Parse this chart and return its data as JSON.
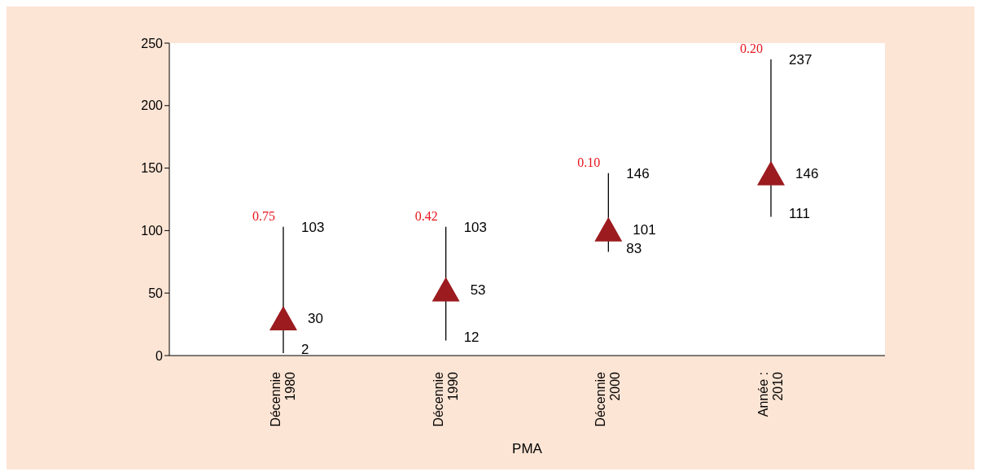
{
  "chart_data": {
    "type": "scatter",
    "xlabel": "PMA",
    "categories": [
      "Décennie 1980",
      "Décennie 1990",
      "Décennie 2000",
      "Année : 2010"
    ],
    "series": [
      {
        "color": "#9b1b1f",
        "values": [
          30,
          53,
          101,
          146
        ],
        "errors": [
          [
            2,
            103
          ],
          [
            12,
            103
          ],
          [
            83,
            146
          ],
          [
            111,
            237
          ]
        ]
      }
    ],
    "marker": "triangle",
    "data_labels": true,
    "ylim": [
      0,
      250
    ],
    "yticks": [
      0,
      50,
      100,
      150,
      200,
      250
    ],
    "annotations": [
      "0.75",
      "0.42",
      "0.10",
      "0.20",
      {
        "text": "103",
        "x": "Décennie 1980",
        "y": 103
      },
      {
        "text": "2",
        "x": "Décennie 1980",
        "y": 2
      },
      {
        "text": "103",
        "x": "Décennie 1990",
        "y": 103
      },
      {
        "text": "12",
        "x": "Décennie 1990",
        "y": 12
      },
      {
        "text": "146",
        "x": "Décennie 2000",
        "y": 146
      },
      {
        "text": "83",
        "x": "Décennie 2000",
        "y": 83
      },
      {
        "text": "237",
        "x": "Année : 2010",
        "y": 237
      },
      {
        "text": "111",
        "x": "Année : 2010",
        "y": 111
      }
    ]
  }
}
